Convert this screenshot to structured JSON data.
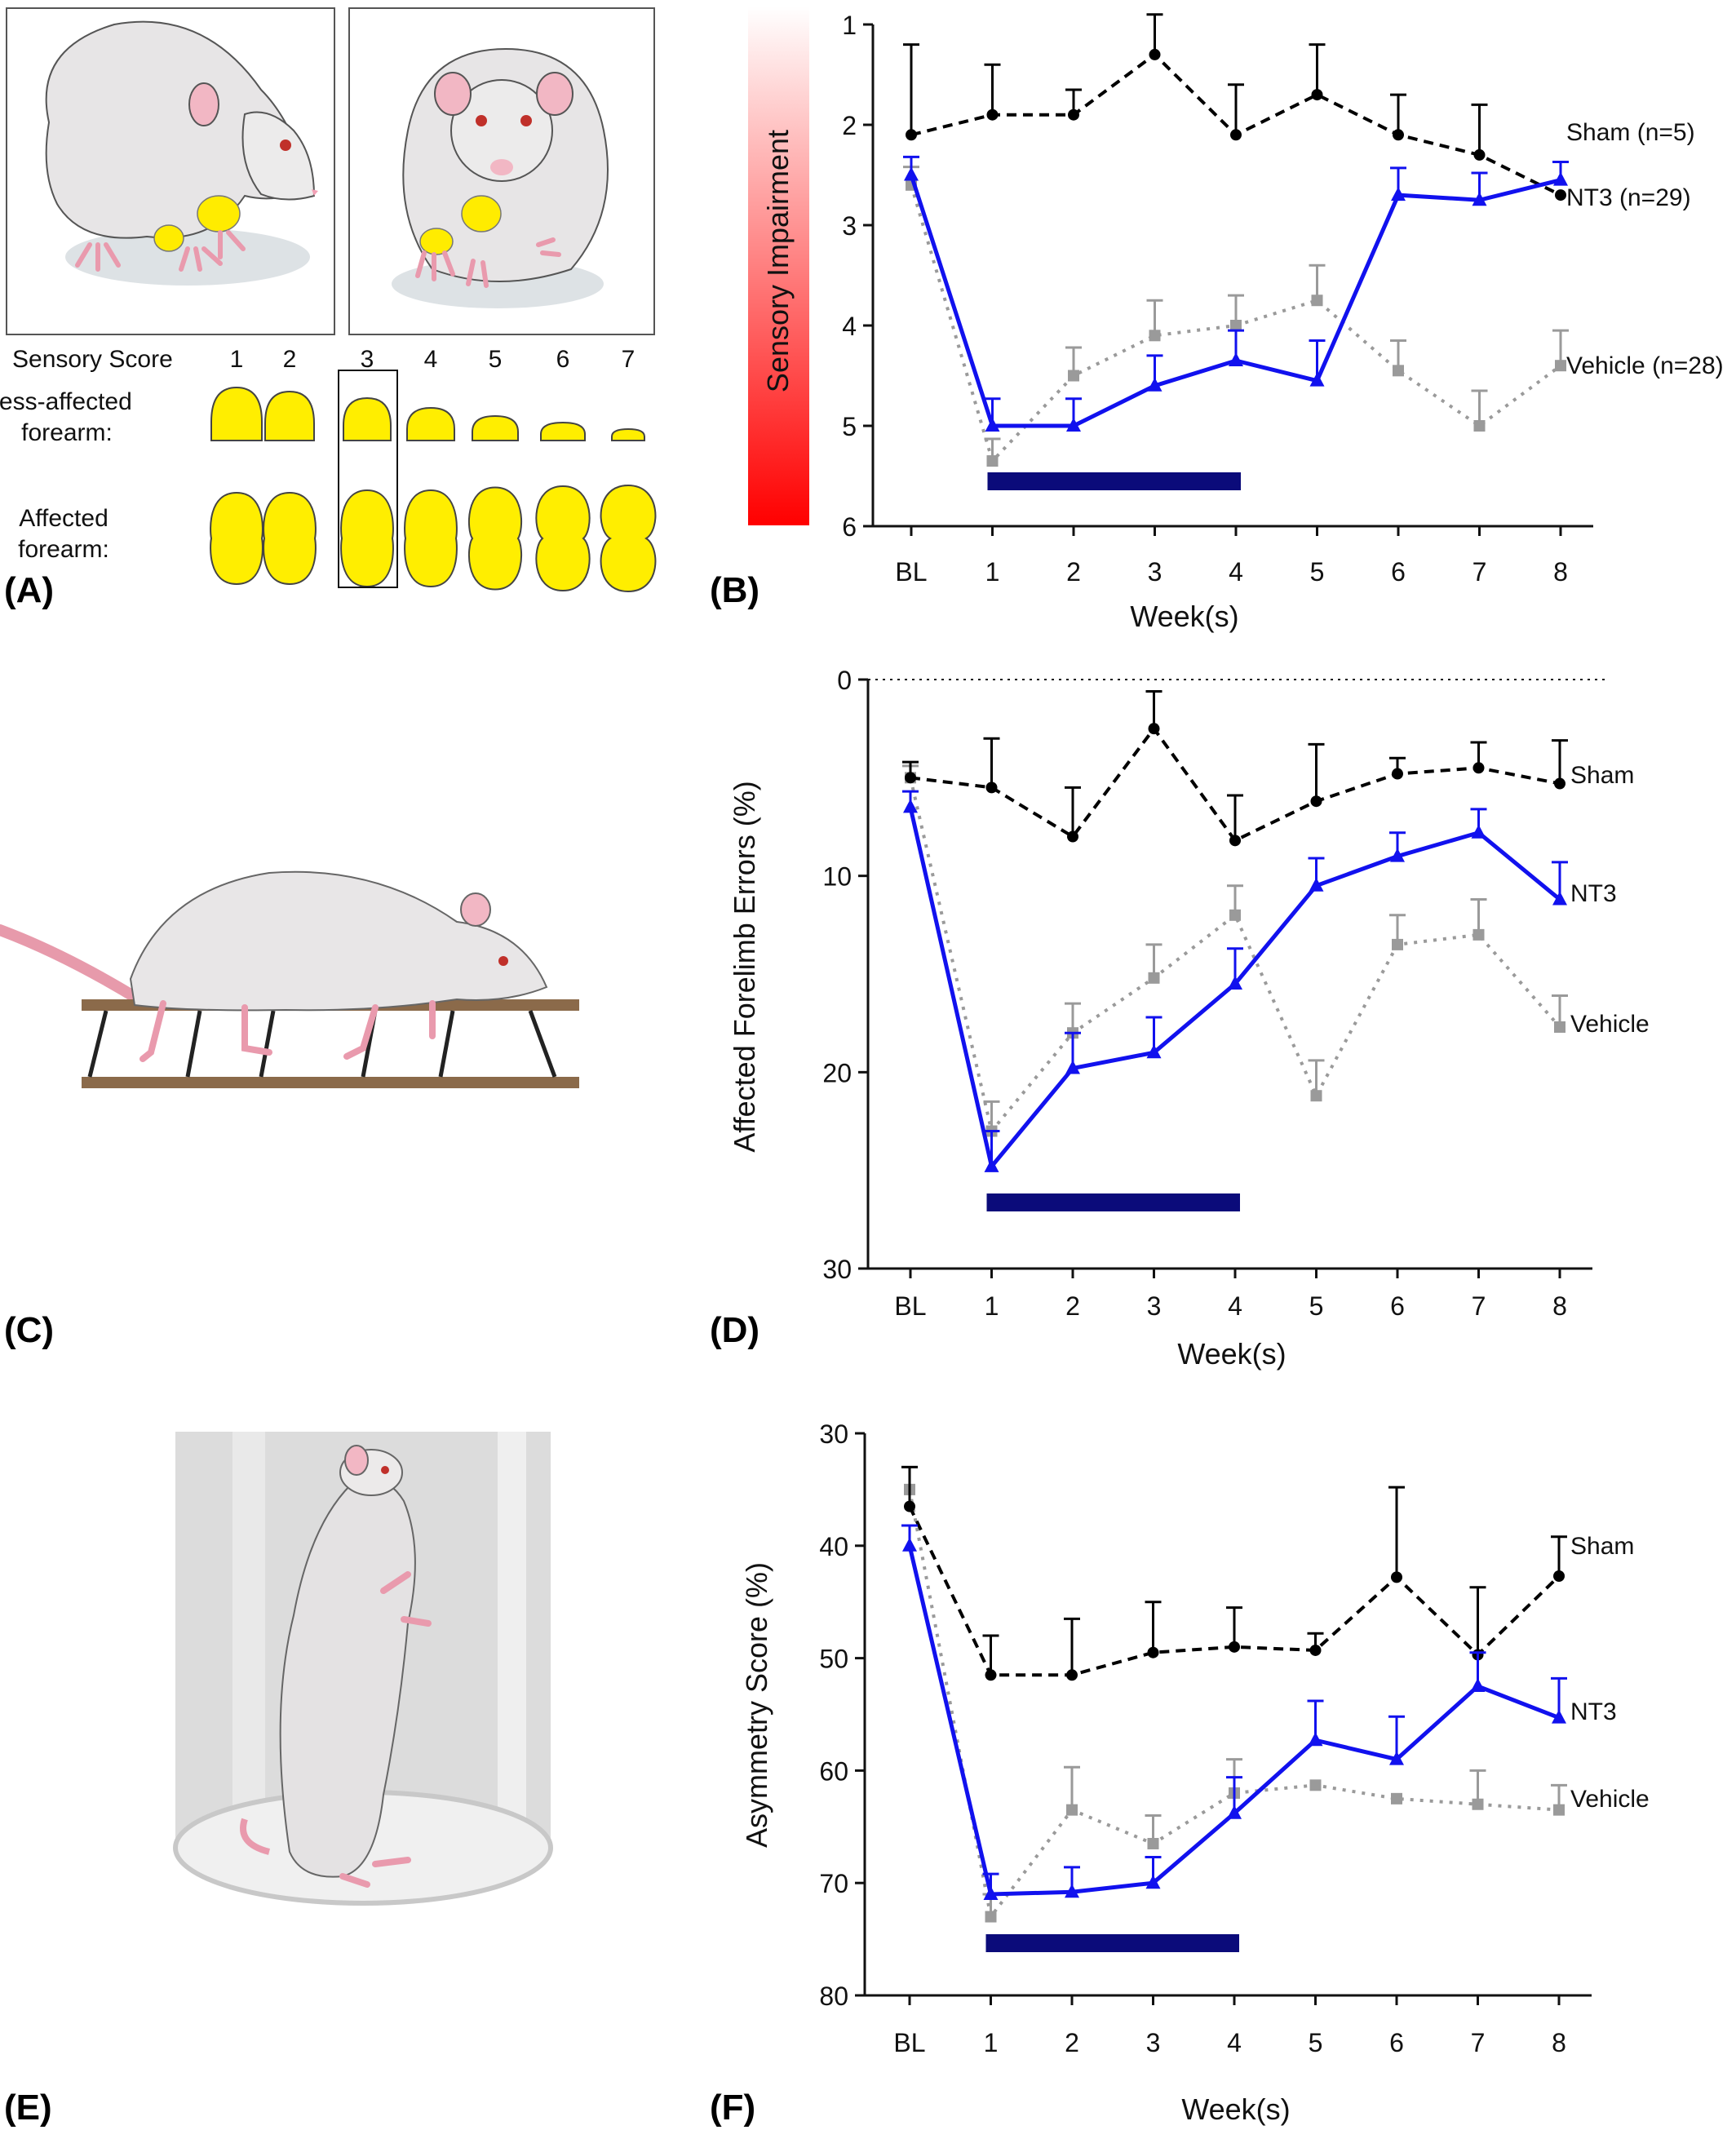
{
  "panel_labels": {
    "A": "(A)",
    "B": "(B)",
    "C": "(C)",
    "D": "(D)",
    "E": "(E)",
    "F": "(F)"
  },
  "panel_a": {
    "score_label": "Sensory Score",
    "scores": [
      "1",
      "2",
      "3",
      "4",
      "5",
      "6",
      "7"
    ],
    "row1_label_line1": "Less-affected",
    "row1_label_line2": "forearm:",
    "row2_label_line1": "Affected",
    "row2_label_line2": "forearm:",
    "highlighted_score": 3,
    "marker_color": "#ffee00"
  },
  "colors": {
    "sham": "#000000",
    "nt3": "#1111ee",
    "vehicle": "#9a9a9a",
    "treatment_bar": "#0b0b7a"
  },
  "chart_data": [
    {
      "id": "B",
      "type": "line",
      "xlabel": "Week(s)",
      "ylabel": "Sensory Impairment",
      "ylabel_style": "gradient-bar",
      "categories": [
        "BL",
        "1",
        "2",
        "3",
        "4",
        "5",
        "6",
        "7",
        "8"
      ],
      "ylim": [
        1,
        6
      ],
      "yticks": [
        "1",
        "2",
        "3",
        "4",
        "5",
        "6"
      ],
      "y_inverted": true,
      "treatment_bar_weeks": [
        1,
        4
      ],
      "series": [
        {
          "name": "Sham (n=5)",
          "key": "sham",
          "values": [
            2.1,
            1.9,
            1.9,
            1.3,
            2.1,
            1.7,
            2.1,
            2.3,
            2.7
          ],
          "err": [
            0.9,
            0.5,
            0.25,
            0.4,
            0.5,
            0.5,
            0.4,
            0.5,
            0.0
          ]
        },
        {
          "name": "NT3 (n=29)",
          "key": "nt3",
          "values": [
            2.5,
            5.0,
            5.0,
            4.6,
            4.35,
            4.55,
            2.7,
            2.75,
            2.55
          ],
          "err": [
            0.18,
            0.27,
            0.27,
            0.3,
            0.3,
            0.4,
            0.27,
            0.27,
            0.18
          ]
        },
        {
          "name": "Vehicle (n=28)",
          "key": "vehicle",
          "values": [
            2.6,
            5.35,
            4.5,
            4.1,
            4.0,
            3.75,
            4.45,
            5.0,
            4.4
          ],
          "err": [
            0.18,
            0.22,
            0.28,
            0.35,
            0.3,
            0.35,
            0.3,
            0.35,
            0.35
          ]
        }
      ]
    },
    {
      "id": "D",
      "type": "line",
      "xlabel": "Week(s)",
      "ylabel": "Affected Forelimb Errors (%)",
      "categories": [
        "BL",
        "1",
        "2",
        "3",
        "4",
        "5",
        "6",
        "7",
        "8"
      ],
      "ylim": [
        0,
        30
      ],
      "yticks": [
        "0",
        "10",
        "20",
        "30"
      ],
      "y_inverted": true,
      "zero_line": true,
      "treatment_bar_weeks": [
        1,
        4
      ],
      "series": [
        {
          "name": "Sham",
          "key": "sham",
          "values": [
            5.0,
            5.5,
            8.0,
            2.5,
            8.2,
            6.2,
            4.8,
            4.5,
            5.3
          ],
          "err": [
            0.8,
            2.5,
            2.5,
            1.9,
            2.3,
            2.9,
            0.8,
            1.3,
            2.2
          ]
        },
        {
          "name": "NT3",
          "key": "nt3",
          "values": [
            6.5,
            24.8,
            19.8,
            19.0,
            15.5,
            10.5,
            9.0,
            7.8,
            11.2
          ],
          "err": [
            0.8,
            1.8,
            1.8,
            1.8,
            1.8,
            1.4,
            1.2,
            1.2,
            1.9
          ]
        },
        {
          "name": "Vehicle",
          "key": "vehicle",
          "values": [
            5.0,
            23.0,
            18.0,
            15.2,
            12.0,
            21.2,
            13.5,
            13.0,
            17.7
          ],
          "err": [
            0.6,
            1.5,
            1.5,
            1.7,
            1.5,
            1.8,
            1.5,
            1.8,
            1.6
          ]
        }
      ]
    },
    {
      "id": "F",
      "type": "line",
      "xlabel": "Week(s)",
      "ylabel": "Asymmetry Score (%)",
      "categories": [
        "BL",
        "1",
        "2",
        "3",
        "4",
        "5",
        "6",
        "7",
        "8"
      ],
      "ylim": [
        30,
        80
      ],
      "yticks": [
        "30",
        "40",
        "50",
        "60",
        "70",
        "80"
      ],
      "y_inverted": true,
      "treatment_bar_weeks": [
        1,
        4
      ],
      "series": [
        {
          "name": "Sham",
          "key": "sham",
          "values": [
            36.5,
            51.5,
            51.5,
            49.5,
            49.0,
            49.3,
            42.8,
            49.7,
            42.7
          ],
          "err": [
            3.5,
            3.5,
            5.0,
            4.5,
            3.5,
            1.5,
            8.0,
            6.0,
            3.5
          ]
        },
        {
          "name": "NT3",
          "key": "nt3",
          "values": [
            40.0,
            71.0,
            70.8,
            70.0,
            63.8,
            57.3,
            59.0,
            52.5,
            55.3
          ],
          "err": [
            1.8,
            1.8,
            2.2,
            2.3,
            3.2,
            3.5,
            3.8,
            3.0,
            3.5
          ]
        },
        {
          "name": "Vehicle",
          "key": "vehicle",
          "values": [
            35.0,
            73.0,
            63.5,
            66.5,
            62.0,
            61.3,
            62.5,
            63.0,
            63.5
          ],
          "err": [
            2.0,
            2.0,
            3.8,
            2.5,
            3.0,
            0.0,
            0.0,
            3.0,
            2.2
          ]
        }
      ]
    }
  ]
}
